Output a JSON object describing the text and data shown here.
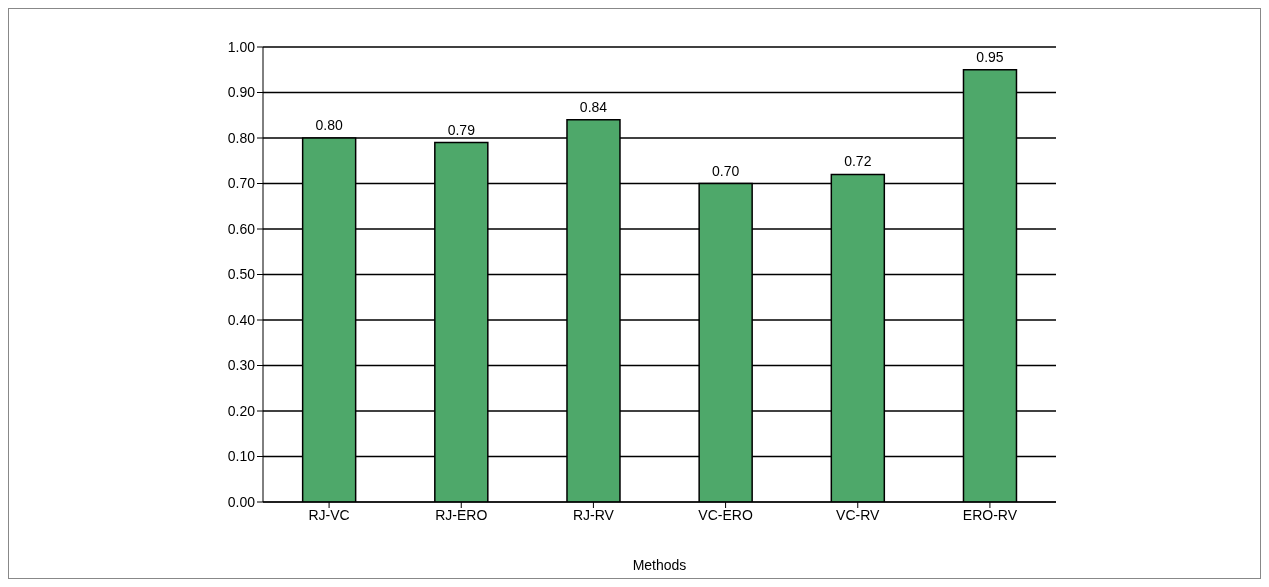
{
  "chart_data": {
    "type": "bar",
    "xlabel": "Methods",
    "categories": [
      "RJ-VC",
      "RJ-ERO",
      "RJ-RV",
      "VC-ERO",
      "VC-RV",
      "ERO-RV"
    ],
    "values": [
      0.8,
      0.79,
      0.84,
      0.7,
      0.72,
      0.95
    ],
    "value_labels": [
      "0.80",
      "0.79",
      "0.84",
      "0.70",
      "0.72",
      "0.95"
    ],
    "color": "#4ea86a",
    "ylim": [
      0,
      1
    ],
    "yticks": [
      {
        "value": 0,
        "label": "0.00"
      },
      {
        "value": 0.1,
        "label": "0.10"
      },
      {
        "value": 0.2,
        "label": "0.20"
      },
      {
        "value": 0.3,
        "label": "0.30"
      },
      {
        "value": 0.4,
        "label": "0.40"
      },
      {
        "value": 0.5,
        "label": "0.50"
      },
      {
        "value": 0.6,
        "label": "0.60"
      },
      {
        "value": 0.7,
        "label": "0.70"
      },
      {
        "value": 0.8,
        "label": "0.80"
      },
      {
        "value": 0.9,
        "label": "0.90"
      },
      {
        "value": 1,
        "label": "1.00"
      }
    ],
    "grid": "y",
    "legend": false
  }
}
